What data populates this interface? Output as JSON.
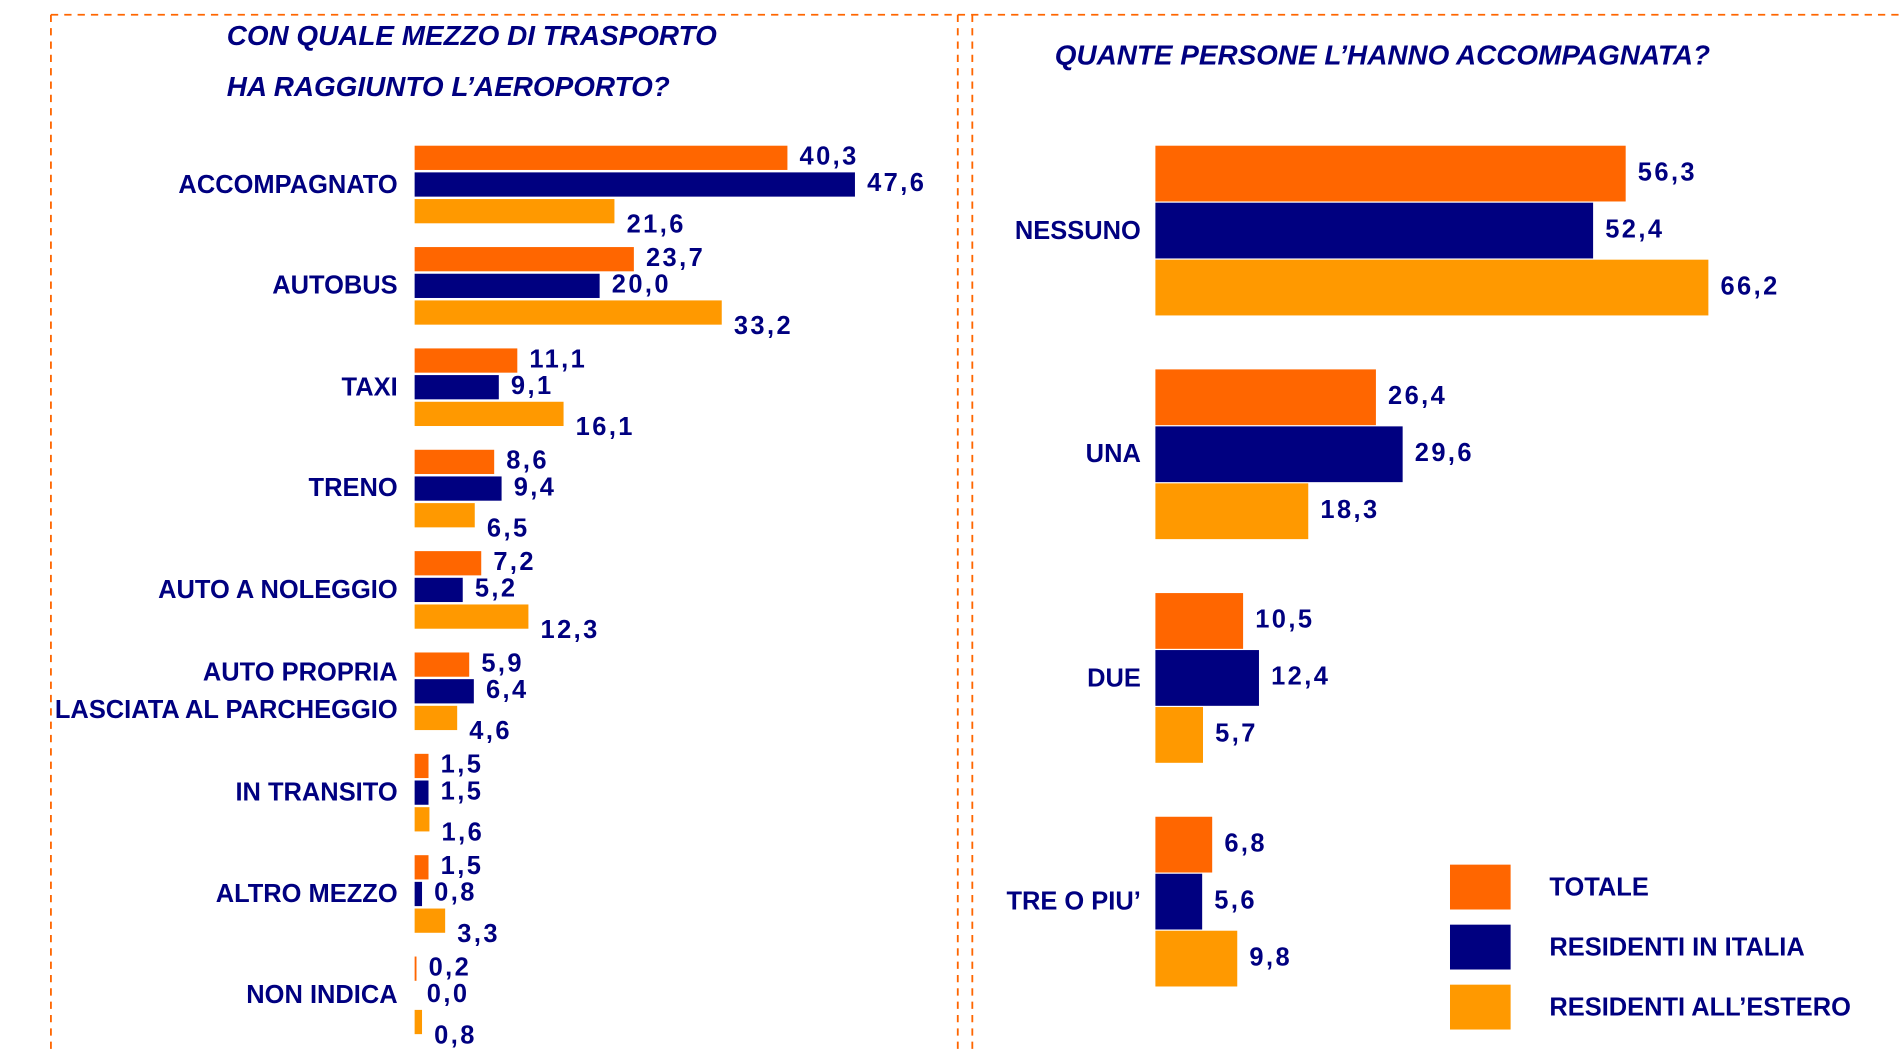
{
  "chart_data": [
    {
      "type": "bar",
      "orientation": "horizontal",
      "title": "CON QUALE MEZZO DI TRASPORTO\nHA RAGGIUNTO L’AEROPORTO?",
      "categories": [
        "ACCOMPAGNATO",
        "AUTOBUS",
        "TAXI",
        "TRENO",
        "AUTO A NOLEGGIO",
        "AUTO PROPRIA\nLASCIATA AL PARCHEGGIO",
        "IN TRANSITO",
        "ALTRO MEZZO",
        "NON INDICA"
      ],
      "series": [
        {
          "name": "TOTALE",
          "color": "#ff6600",
          "values": [
            40.3,
            23.7,
            11.1,
            8.6,
            7.2,
            5.9,
            1.5,
            1.5,
            0.2
          ],
          "value_labels": [
            "40,3",
            "23,7",
            "11,1",
            "8,6",
            "7,2",
            "5,9",
            "1,5",
            "1,5",
            "0,2"
          ]
        },
        {
          "name": "RESIDENTI IN ITALIA",
          "color": "#000080",
          "values": [
            47.6,
            20.0,
            9.1,
            9.4,
            5.2,
            6.4,
            1.5,
            0.8,
            0.0
          ],
          "value_labels": [
            "47,6",
            "20,0",
            "9,1",
            "9,4",
            "5,2",
            "6,4",
            "1,5",
            "0,8",
            "0,0"
          ]
        },
        {
          "name": "RESIDENTI ALL’ESTERO",
          "color": "#ff9900",
          "values": [
            21.6,
            33.2,
            16.1,
            6.5,
            12.3,
            4.6,
            1.6,
            3.3,
            0.8
          ],
          "value_labels": [
            "21,6",
            "33,2",
            "16,1",
            "6,5",
            "12,3",
            "4,6",
            "1,6",
            "3,3",
            "0,8"
          ]
        }
      ]
    },
    {
      "type": "bar",
      "orientation": "horizontal",
      "title": "QUANTE PERSONE L’HANNO ACCOMPAGNATA?",
      "categories": [
        "NESSUNO",
        "UNA",
        "DUE",
        "TRE O PIU’"
      ],
      "legend": "lower right",
      "series": [
        {
          "name": "TOTALE",
          "color": "#ff6600",
          "values": [
            56.3,
            26.4,
            10.5,
            6.8
          ],
          "value_labels": [
            "56,3",
            "26,4",
            "10,5",
            "6,8"
          ]
        },
        {
          "name": "RESIDENTI IN ITALIA",
          "color": "#000080",
          "values": [
            52.4,
            29.6,
            12.4,
            5.6
          ],
          "value_labels": [
            "52,4",
            "29,6",
            "12,4",
            "5,6"
          ]
        },
        {
          "name": "RESIDENTI ALL’ESTERO",
          "color": "#ff9900",
          "values": [
            66.2,
            18.3,
            5.7,
            9.8
          ],
          "value_labels": [
            "66,2",
            "18,3",
            "5,7",
            "9,8"
          ]
        }
      ]
    }
  ]
}
